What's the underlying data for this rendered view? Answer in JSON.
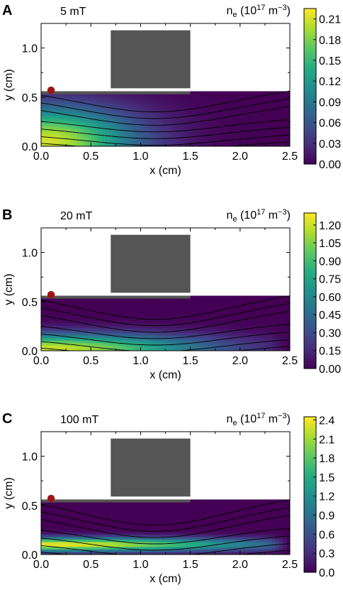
{
  "chart_data": [
    {
      "type": "heatmap",
      "panel_label": "A",
      "field_label": "5 mT",
      "colorbar_title": "n",
      "colorbar_title_sub": "e",
      "colorbar_units_a": " (10",
      "colorbar_units_exp1": "17",
      "colorbar_units_b": " m",
      "colorbar_units_exp2": "−3",
      "colorbar_units_c": ")",
      "xlabel": "x (cm)",
      "ylabel": "y (cm)",
      "xlim": [
        0.0,
        2.5
      ],
      "ylim": [
        0.0,
        1.25
      ],
      "xticks": [
        "0.0",
        "0.5",
        "1.0",
        "1.5",
        "2.0",
        "2.5"
      ],
      "yticks": [
        "0.0",
        "0.5",
        "1.0"
      ],
      "colorbar_range": [
        0.0,
        0.225
      ],
      "colorbar_ticks": [
        "0.00",
        "0.03",
        "0.06",
        "0.09",
        "0.12",
        "0.15",
        "0.18",
        "0.21"
      ],
      "plasma_region": {
        "x": [
          0.0,
          2.5
        ],
        "y": [
          0.0,
          0.56
        ]
      },
      "electrode_block": {
        "x": [
          0.7,
          1.5
        ],
        "y": [
          0.59,
          1.18
        ]
      },
      "plate": {
        "x": [
          0.0,
          1.5
        ],
        "y": [
          0.53,
          0.56
        ]
      },
      "marker": {
        "x": 0.1,
        "y": 0.57,
        "color": "#a01212"
      },
      "density_peak": {
        "x": 0.05,
        "y": 0.05,
        "value": 0.21,
        "spread_x": 0.9,
        "spread_y": 0.35
      },
      "field_line_sag": 0.15
    },
    {
      "type": "heatmap",
      "panel_label": "B",
      "field_label": "20 mT",
      "colorbar_title": "n",
      "colorbar_title_sub": "e",
      "colorbar_units_a": " (10",
      "colorbar_units_exp1": "17",
      "colorbar_units_b": " m",
      "colorbar_units_exp2": "−3",
      "colorbar_units_c": ")",
      "xlabel": "x (cm)",
      "ylabel": "y (cm)",
      "xlim": [
        0.0,
        2.5
      ],
      "ylim": [
        0.0,
        1.25
      ],
      "xticks": [
        "0.0",
        "0.5",
        "1.0",
        "1.5",
        "2.0",
        "2.5"
      ],
      "yticks": [
        "0.0",
        "0.5",
        "1.0"
      ],
      "colorbar_range": [
        0.0,
        1.3
      ],
      "colorbar_ticks": [
        "0.00",
        "0.15",
        "0.30",
        "0.45",
        "0.60",
        "0.75",
        "0.90",
        "1.05",
        "1.20"
      ],
      "plasma_region": {
        "x": [
          0.0,
          2.5
        ],
        "y": [
          0.0,
          0.56
        ]
      },
      "electrode_block": {
        "x": [
          0.7,
          1.5
        ],
        "y": [
          0.59,
          1.18
        ]
      },
      "plate": {
        "x": [
          0.0,
          1.5
        ],
        "y": [
          0.53,
          0.56
        ]
      },
      "marker": {
        "x": 0.1,
        "y": 0.57,
        "color": "#a01212"
      },
      "density_peak": {
        "x": 0.05,
        "y": 0.02,
        "value": 1.2,
        "spread_x": 1.6,
        "spread_y": 0.15
      },
      "field_line_sag": 0.18
    },
    {
      "type": "heatmap",
      "panel_label": "C",
      "field_label": "100 mT",
      "colorbar_title": "n",
      "colorbar_title_sub": "e",
      "colorbar_units_a": " (10",
      "colorbar_units_exp1": "17",
      "colorbar_units_b": " m",
      "colorbar_units_exp2": "−3",
      "colorbar_units_c": ")",
      "xlabel": "x (cm)",
      "ylabel": "y (cm)",
      "xlim": [
        0.0,
        2.5
      ],
      "ylim": [
        0.0,
        1.25
      ],
      "xticks": [
        "0.0",
        "0.5",
        "1.0",
        "1.5",
        "2.0",
        "2.5"
      ],
      "yticks": [
        "0.0",
        "0.5",
        "1.0"
      ],
      "colorbar_range": [
        0.0,
        2.45
      ],
      "colorbar_ticks": [
        "0.0",
        "0.3",
        "0.6",
        "0.9",
        "1.2",
        "1.5",
        "1.8",
        "2.1",
        "2.4"
      ],
      "plasma_region": {
        "x": [
          0.0,
          2.5
        ],
        "y": [
          0.0,
          0.56
        ]
      },
      "electrode_block": {
        "x": [
          0.7,
          1.5
        ],
        "y": [
          0.59,
          1.18
        ]
      },
      "plate": {
        "x": [
          0.0,
          1.5
        ],
        "y": [
          0.53,
          0.56
        ]
      },
      "marker": {
        "x": 0.1,
        "y": 0.57,
        "color": "#a01212"
      },
      "density_peak": {
        "x": 0.05,
        "y": 0.1,
        "value": 2.4,
        "spread_x": 2.2,
        "spread_y": 0.07
      },
      "field_line_sag": 0.2
    }
  ],
  "colors": {
    "viridis_low": "#440154",
    "viridis_high": "#fde725",
    "electrode": "#555555",
    "field_line": "#000000"
  }
}
